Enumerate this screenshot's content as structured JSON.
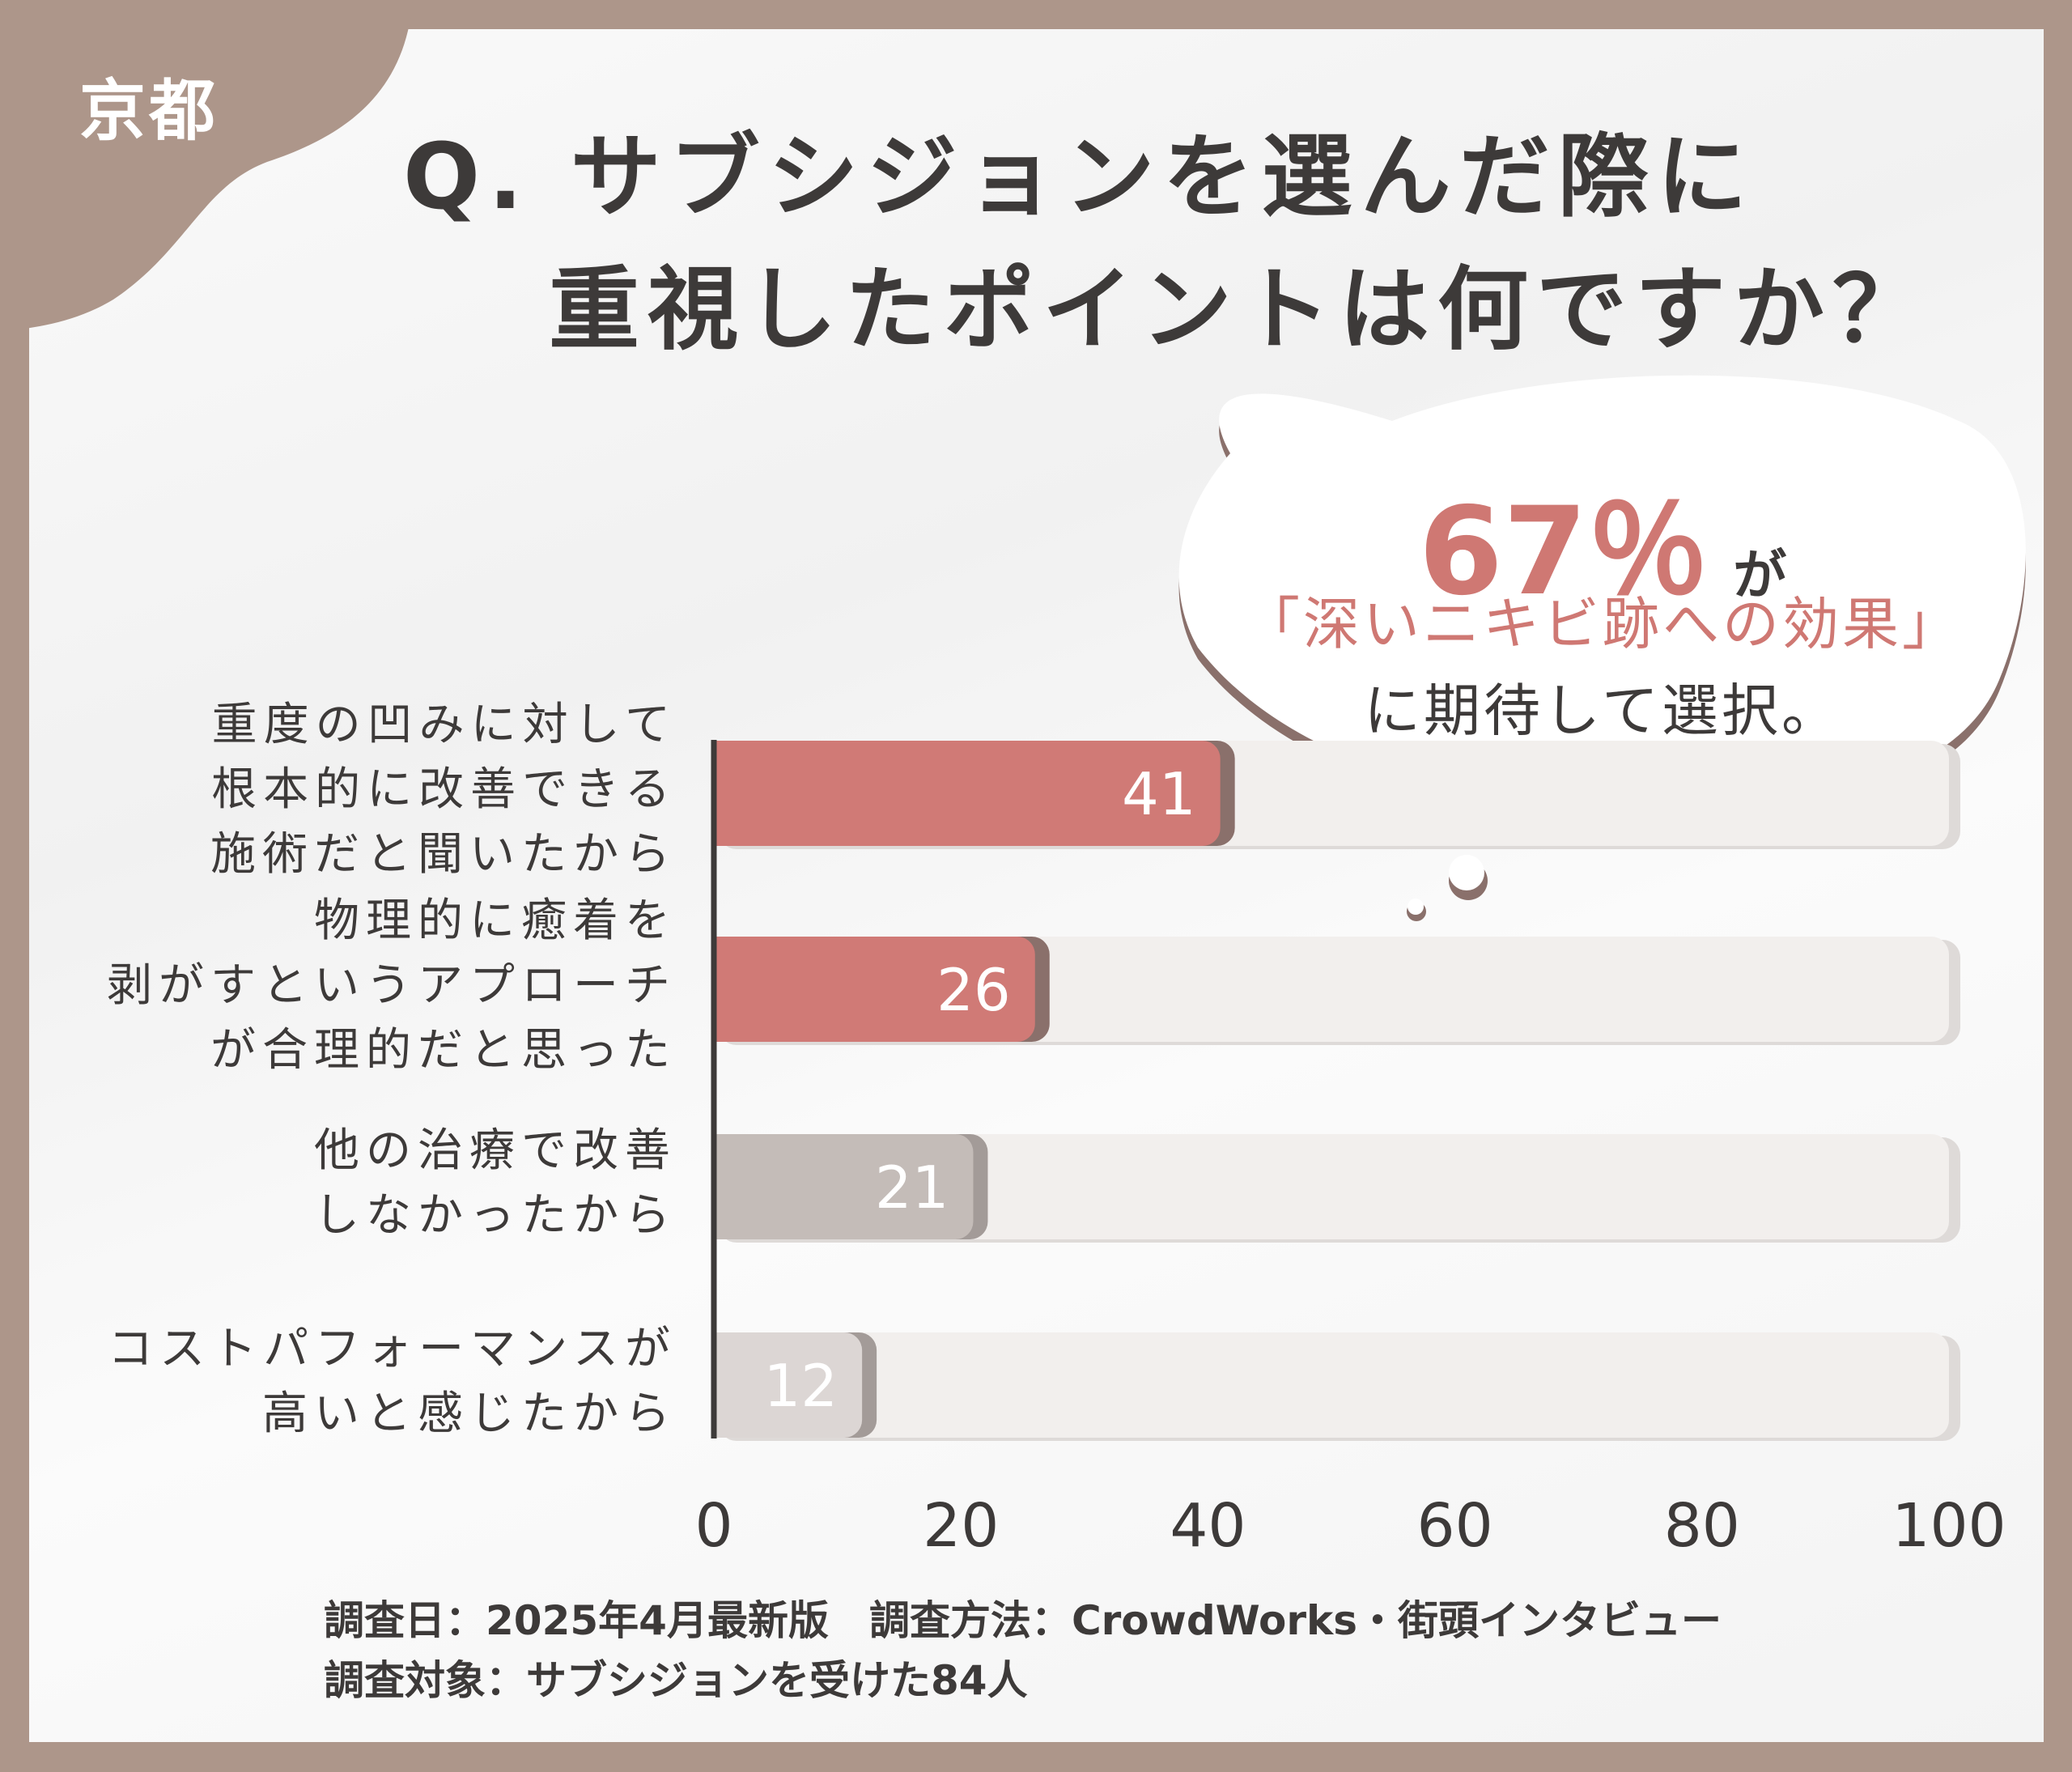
{
  "region_label": "京都",
  "title": {
    "line1": "Q. サブシジョンを選んだ際に",
    "line2": "重視したポイントは何ですか？"
  },
  "callout": {
    "percent": "67％",
    "suffix": "が",
    "highlight": "「深いニキビ跡への効果」",
    "line3": "に期待して選択。"
  },
  "footer": {
    "line1": "調査日：2025年4月最新版　調査方法：CrowdWorks・街頭インタビュー",
    "line2": "調査対象：サブシジョンを受けた84人"
  },
  "colors": {
    "frame": "#ad968a",
    "accent": "#d07a76",
    "accent_shadow": "#8a706b",
    "gray_bar": "#c4bcb8",
    "light_bar": "#dcd6d4",
    "track": "#f2efed",
    "text": "#3d3a39"
  },
  "chart_data": {
    "type": "bar",
    "orientation": "horizontal",
    "categories": [
      "重度の凹みに対して\n根本的に改善できる\n施術だと聞いたから",
      "物理的に癒着を\n剥がすというアプローチ\nが合理的だと思った",
      "他の治療で改善\nしなかったから",
      "コストパフォーマンスが\n高いと感じたから"
    ],
    "values": [
      41,
      26,
      21,
      12
    ],
    "bar_colors": [
      "#d07a76",
      "#d07a76",
      "#c4bcb8",
      "#dcd6d4"
    ],
    "xlim": [
      0,
      100
    ],
    "xticks": [
      "0",
      "20",
      "40",
      "60",
      "80",
      "100"
    ],
    "grid": false,
    "legend": "none"
  }
}
